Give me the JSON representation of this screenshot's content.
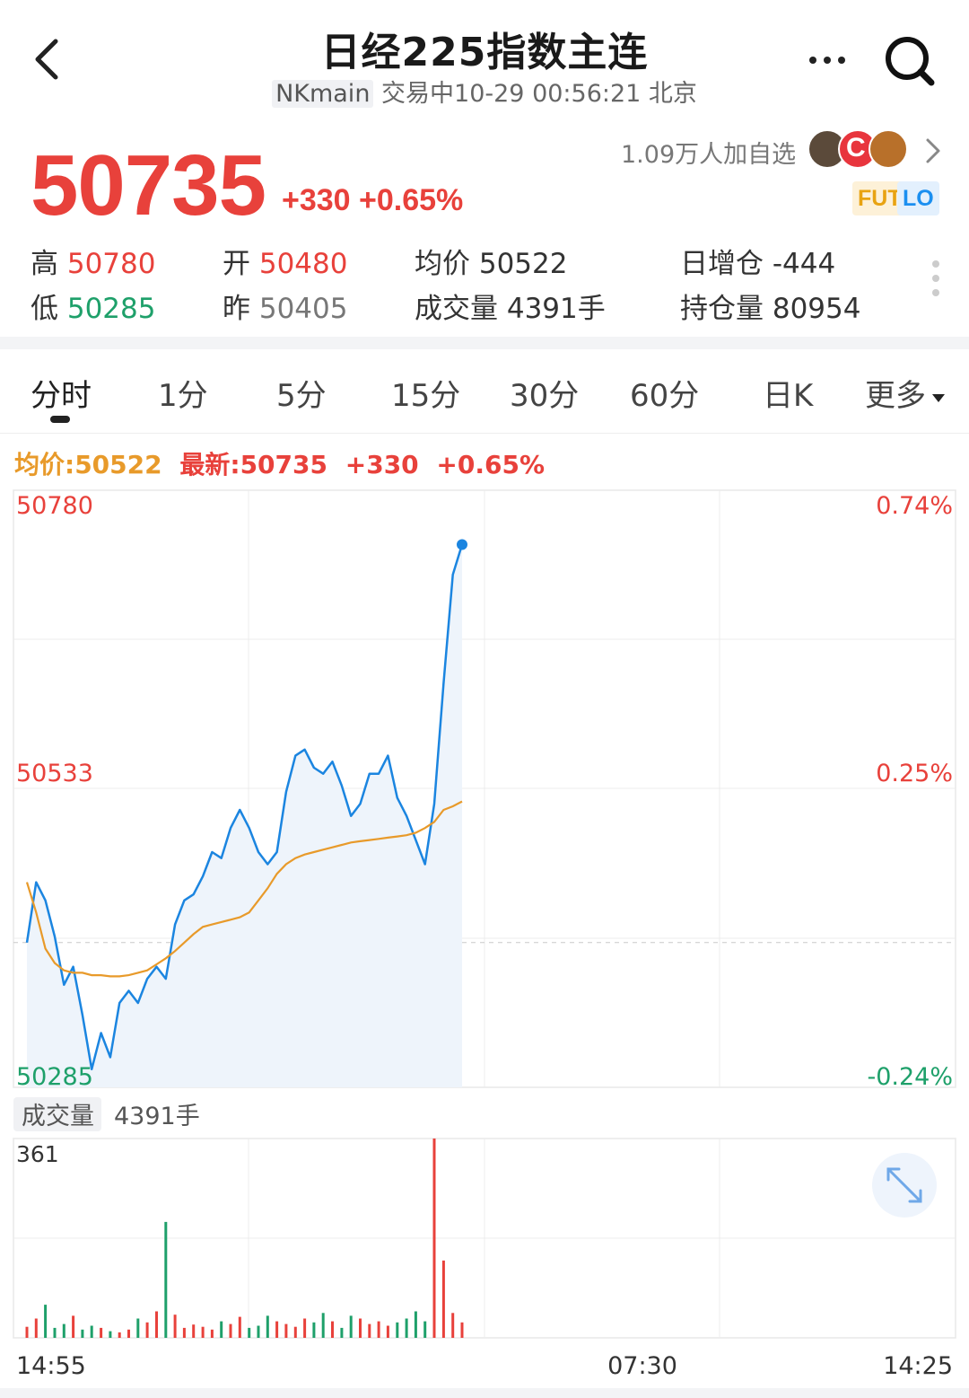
{
  "header": {
    "title": "日经225指数主连",
    "code": "NKmain",
    "status": "交易中10-29 00:56:21 北京"
  },
  "quote": {
    "price": "50735",
    "change": "+330 +0.65%",
    "watchers": "1.09万人加自选",
    "tags": [
      "FUT",
      "LO"
    ]
  },
  "stats": {
    "high_label": "高",
    "high": "50780",
    "low_label": "低",
    "low": "50285",
    "open_label": "开",
    "open": "50480",
    "prev_label": "昨",
    "prev": "50405",
    "avg": "均价 50522",
    "volume": "成交量 4391手",
    "oi_change": "日增仓 -444",
    "oi": "持仓量 80954"
  },
  "tabs": [
    "分时",
    "1分",
    "5分",
    "15分",
    "30分",
    "60分",
    "日K",
    "更多"
  ],
  "legend": {
    "avg": "均价:50522",
    "latest": "最新:50735",
    "change": "+330",
    "pct": "+0.65%"
  },
  "chart_data": {
    "type": "line",
    "y_left_ticks": [
      "50780",
      "50533",
      "50285"
    ],
    "y_right_ticks": [
      "0.74%",
      "0.25%",
      "-0.24%"
    ],
    "ylim": [
      50285,
      50780
    ],
    "reference_price": 50405,
    "x_ticks": [
      "14:55",
      "07:30",
      "14:25"
    ],
    "volume_label": "成交量",
    "volume_value": "4391手",
    "volume_max": "361",
    "series": [
      {
        "values": [
          50405,
          50455,
          50440,
          50410,
          50370,
          50385,
          50345,
          50300,
          50330,
          50310,
          50355,
          50365,
          50355,
          50375,
          50385,
          50375,
          50420,
          50440,
          50445,
          50460,
          50480,
          50475,
          50500,
          50515,
          50500,
          50480,
          50470,
          50480,
          50530,
          50560,
          50565,
          50550,
          50545,
          50555,
          50535,
          50510,
          50520,
          50545,
          50545,
          50560,
          50525,
          50510,
          50490,
          50470,
          50520,
          50620,
          50710,
          50735
        ]
      },
      {
        "values": [
          50455,
          50430,
          50400,
          50388,
          50382,
          50380,
          50380,
          50378,
          50378,
          50377,
          50377,
          50378,
          50380,
          50382,
          50387,
          50392,
          50398,
          50405,
          50412,
          50418,
          50420,
          50422,
          50424,
          50426,
          50430,
          50440,
          50450,
          50462,
          50470,
          50475,
          50478,
          50480,
          50482,
          50484,
          50486,
          50488,
          50489,
          50490,
          50491,
          50492,
          50493,
          50494,
          50496,
          50500,
          50505,
          50515,
          50518,
          50522
        ]
      }
    ],
    "volume": [
      20,
      35,
      60,
      18,
      25,
      40,
      15,
      22,
      18,
      12,
      10,
      15,
      35,
      28,
      48,
      210,
      42,
      18,
      24,
      20,
      15,
      30,
      25,
      38,
      18,
      22,
      40,
      30,
      25,
      20,
      35,
      28,
      45,
      30,
      18,
      40,
      35,
      25,
      30,
      22,
      28,
      35,
      48,
      30,
      361,
      140,
      45,
      28
    ]
  }
}
